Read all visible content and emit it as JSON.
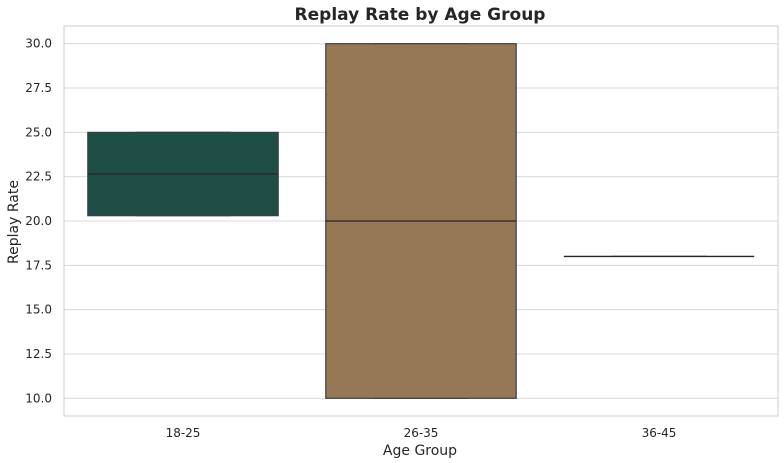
{
  "chart_data": {
    "type": "box",
    "title": "Replay Rate by Age Group",
    "xlabel": "Age Group",
    "ylabel": "Replay Rate",
    "categories": [
      "18-25",
      "26-35",
      "36-45"
    ],
    "boxes": [
      {
        "category": "18-25",
        "min": 20.3,
        "q1": 20.3,
        "median": 22.65,
        "q3": 25.0,
        "max": 25.0,
        "color": "#1f4e47"
      },
      {
        "category": "26-35",
        "min": 10.0,
        "q1": 10.0,
        "median": 20.0,
        "q3": 30.0,
        "max": 30.0,
        "color": "#967856"
      },
      {
        "category": "36-45",
        "min": 18.0,
        "q1": 18.0,
        "median": 18.0,
        "q3": 18.0,
        "max": 18.0,
        "color": "#5a6b7a"
      }
    ],
    "ylim": [
      9.0,
      31.0
    ],
    "yticks": [
      10.0,
      12.5,
      15.0,
      17.5,
      20.0,
      22.5,
      25.0,
      27.5,
      30.0
    ],
    "ytick_labels": [
      "10.0",
      "12.5",
      "15.0",
      "17.5",
      "20.0",
      "22.5",
      "25.0",
      "27.5",
      "30.0"
    ],
    "grid": true,
    "colors": {
      "grid": "#d9d9d9",
      "spine": "#cccccc",
      "text": "#262626",
      "median": "#262626",
      "edge": "#3d3d3d"
    }
  }
}
